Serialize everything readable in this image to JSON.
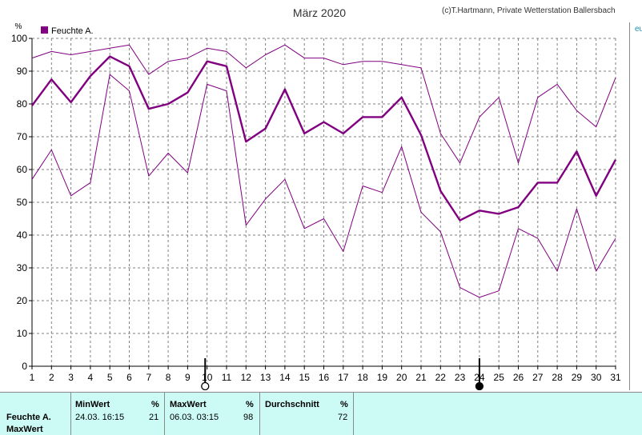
{
  "chart_data": {
    "type": "line",
    "title": "März 2020",
    "credit": "(c)T.Hartmann, Private Wetterstation Ballersbach",
    "ylabel": "%",
    "ylim": [
      0,
      100
    ],
    "yticks": [
      0,
      10,
      20,
      30,
      40,
      50,
      60,
      70,
      80,
      90,
      100
    ],
    "grid": true,
    "legend_position": "top-left",
    "legend_label": "Feuchte A.",
    "x": [
      1,
      2,
      3,
      4,
      5,
      6,
      7,
      8,
      9,
      10,
      11,
      12,
      13,
      14,
      15,
      16,
      17,
      18,
      19,
      20,
      21,
      22,
      23,
      24,
      25,
      26,
      27,
      28,
      29,
      30,
      31
    ],
    "series": [
      {
        "name": "Feuchte A.",
        "values": [
          79.5,
          87.5,
          80.5,
          88.5,
          94.5,
          91.5,
          78.5,
          80,
          83.5,
          93,
          91.5,
          68.5,
          72.5,
          84.5,
          71,
          74.5,
          71,
          76,
          76,
          82,
          70.5,
          53.5,
          44.5,
          47.5,
          46.5,
          48.5,
          56,
          56,
          65.5,
          52,
          63
        ]
      },
      {
        "name": "",
        "values": [
          94,
          96,
          95,
          96,
          97,
          98,
          89,
          93,
          94,
          97,
          96,
          91,
          95,
          98,
          94,
          94,
          92,
          93,
          93,
          92,
          91,
          71,
          62,
          76,
          82,
          62,
          82,
          86,
          78,
          73,
          88
        ]
      },
      {
        "name": "",
        "values": [
          57,
          66,
          52,
          56,
          89,
          84,
          58,
          65,
          59,
          86,
          84,
          43,
          51,
          57,
          42,
          45,
          35,
          55,
          53,
          67,
          47,
          41,
          24,
          21,
          23,
          42,
          39,
          29,
          48,
          29,
          39
        ]
      }
    ],
    "moon_phases": [
      {
        "day": 9.9,
        "phase": "full-moon"
      },
      {
        "day": 24,
        "phase": "new-moon"
      }
    ],
    "colors": {
      "series": "#800080",
      "grid": "#808080",
      "axis": "#000000",
      "text": "#000000",
      "title": "#333333"
    }
  },
  "right_strip": {
    "fragment": "eu"
  },
  "stats": {
    "row1_label": "Feuchte A.",
    "row2_label": "MaxWert",
    "min_header": "MinWert",
    "min_unit": "%",
    "min_time": "24.03.  16:15",
    "min_value": "21",
    "max_header": "MaxWert",
    "max_unit": "%",
    "max_time": "06.03.  03:15",
    "max_value": "98",
    "avg_header": "Durchschnitt",
    "avg_unit": "%",
    "avg_value": "72",
    "bg_color": "#ccfbf6"
  }
}
